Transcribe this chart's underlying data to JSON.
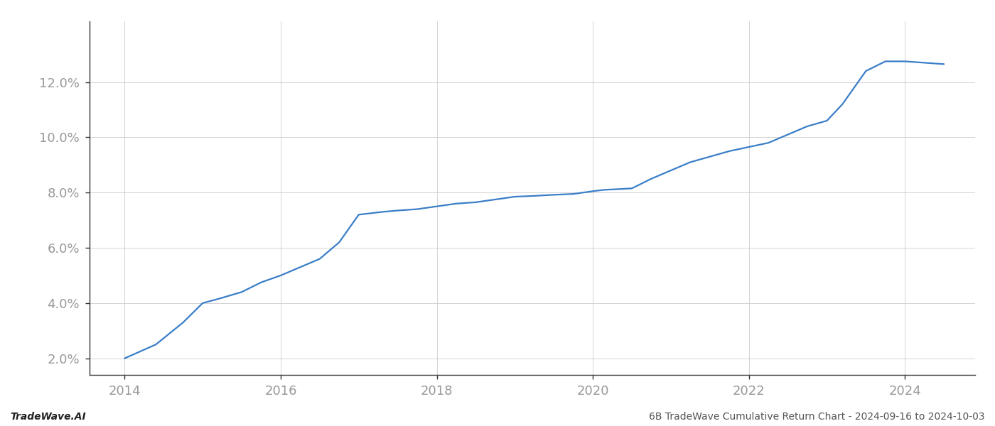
{
  "x_values": [
    2014.0,
    2014.4,
    2014.75,
    2015.0,
    2015.2,
    2015.5,
    2015.75,
    2016.0,
    2016.25,
    2016.5,
    2016.75,
    2017.0,
    2017.15,
    2017.3,
    2017.5,
    2017.75,
    2018.0,
    2018.25,
    2018.5,
    2018.75,
    2019.0,
    2019.25,
    2019.5,
    2019.75,
    2020.0,
    2020.15,
    2020.5,
    2020.75,
    2021.0,
    2021.25,
    2021.5,
    2021.75,
    2022.0,
    2022.25,
    2022.5,
    2022.75,
    2023.0,
    2023.2,
    2023.5,
    2023.75,
    2024.0,
    2024.5
  ],
  "y_values": [
    2.0,
    2.5,
    3.3,
    4.0,
    4.15,
    4.4,
    4.75,
    5.0,
    5.3,
    5.6,
    6.2,
    7.2,
    7.25,
    7.3,
    7.35,
    7.4,
    7.5,
    7.6,
    7.65,
    7.75,
    7.85,
    7.88,
    7.92,
    7.95,
    8.05,
    8.1,
    8.15,
    8.5,
    8.8,
    9.1,
    9.3,
    9.5,
    9.65,
    9.8,
    10.1,
    10.4,
    10.6,
    11.2,
    12.4,
    12.75,
    12.75,
    12.65
  ],
  "line_color": "#3a7ec8",
  "line_width": 1.6,
  "background_color": "#ffffff",
  "grid_color": "#cccccc",
  "xlim": [
    2013.55,
    2024.9
  ],
  "ylim": [
    1.4,
    14.2
  ],
  "yticks": [
    2.0,
    4.0,
    6.0,
    8.0,
    10.0,
    12.0
  ],
  "xticks": [
    2014,
    2016,
    2018,
    2020,
    2022,
    2024
  ],
  "footer_left": "TradeWave.AI",
  "footer_right": "6B TradeWave Cumulative Return Chart - 2024-09-16 to 2024-10-03",
  "tick_fontsize": 13,
  "footer_fontsize": 10,
  "tick_color": "#999999"
}
